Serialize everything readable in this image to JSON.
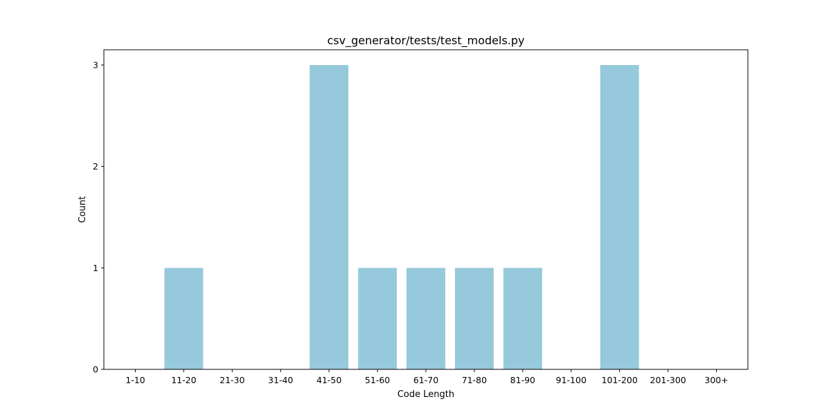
{
  "chart_data": {
    "type": "bar",
    "title": "csv_generator/tests/test_models.py",
    "xlabel": "Code Length",
    "ylabel": "Count",
    "categories": [
      "1-10",
      "11-20",
      "21-30",
      "31-40",
      "41-50",
      "51-60",
      "61-70",
      "71-80",
      "81-90",
      "91-100",
      "101-200",
      "201-300",
      "300+"
    ],
    "values": [
      0,
      1,
      0,
      0,
      3,
      1,
      1,
      1,
      1,
      0,
      3,
      0,
      0
    ],
    "yticks": [
      "0",
      "1",
      "2",
      "3"
    ],
    "ylim": [
      0,
      3.15
    ],
    "grid": false,
    "bar_color": "#96c9dc"
  }
}
